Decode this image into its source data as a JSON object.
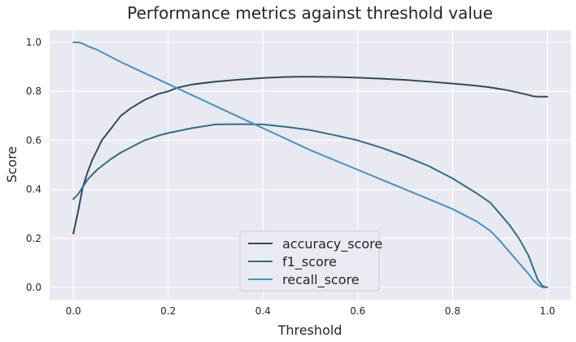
{
  "chart_data": {
    "type": "line",
    "title": "Performance metrics against threshold value",
    "xlabel": "Threshold",
    "ylabel": "Score",
    "xlim": [
      -0.05,
      1.05
    ],
    "ylim": [
      -0.05,
      1.05
    ],
    "x_ticks": [
      0.0,
      0.2,
      0.4,
      0.6,
      0.8,
      1.0
    ],
    "y_ticks": [
      0.0,
      0.2,
      0.4,
      0.6,
      0.8,
      1.0
    ],
    "x_tick_labels": [
      "0.0",
      "0.2",
      "0.4",
      "0.6",
      "0.8",
      "1.0"
    ],
    "y_tick_labels": [
      "0.0",
      "0.2",
      "0.4",
      "0.6",
      "0.8",
      "1.0"
    ],
    "grid": true,
    "legend_position": "bottom-center",
    "background_color": "#e9e9f1",
    "grid_color": "#ffffff",
    "series": [
      {
        "name": "accuracy_score",
        "color": "#2f4b5b",
        "x": [
          0.0,
          0.01,
          0.02,
          0.03,
          0.04,
          0.05,
          0.06,
          0.08,
          0.1,
          0.12,
          0.15,
          0.18,
          0.2,
          0.22,
          0.25,
          0.3,
          0.35,
          0.4,
          0.45,
          0.48,
          0.5,
          0.55,
          0.6,
          0.65,
          0.7,
          0.75,
          0.8,
          0.85,
          0.88,
          0.9,
          0.92,
          0.95,
          0.97,
          0.98,
          1.0
        ],
        "y": [
          0.22,
          0.31,
          0.41,
          0.47,
          0.52,
          0.56,
          0.6,
          0.65,
          0.7,
          0.73,
          0.765,
          0.79,
          0.8,
          0.815,
          0.828,
          0.84,
          0.848,
          0.855,
          0.859,
          0.86,
          0.86,
          0.859,
          0.856,
          0.852,
          0.847,
          0.84,
          0.832,
          0.823,
          0.816,
          0.81,
          0.803,
          0.79,
          0.78,
          0.778,
          0.778
        ]
      },
      {
        "name": "f1_score",
        "color": "#2e6e8e",
        "x": [
          0.0,
          0.01,
          0.02,
          0.03,
          0.04,
          0.05,
          0.06,
          0.08,
          0.1,
          0.12,
          0.15,
          0.18,
          0.2,
          0.25,
          0.3,
          0.35,
          0.4,
          0.45,
          0.5,
          0.55,
          0.6,
          0.65,
          0.7,
          0.75,
          0.8,
          0.85,
          0.88,
          0.9,
          0.92,
          0.94,
          0.96,
          0.97,
          0.98,
          0.99,
          1.0
        ],
        "y": [
          0.36,
          0.38,
          0.41,
          0.44,
          0.46,
          0.48,
          0.495,
          0.525,
          0.55,
          0.57,
          0.6,
          0.62,
          0.63,
          0.65,
          0.665,
          0.666,
          0.665,
          0.655,
          0.642,
          0.622,
          0.6,
          0.57,
          0.535,
          0.495,
          0.445,
          0.385,
          0.345,
          0.3,
          0.255,
          0.2,
          0.13,
          0.08,
          0.03,
          0.005,
          0.0
        ]
      },
      {
        "name": "recall_score",
        "color": "#4393bf",
        "x": [
          0.0,
          0.01,
          0.02,
          0.03,
          0.05,
          0.08,
          0.1,
          0.15,
          0.2,
          0.25,
          0.3,
          0.35,
          0.4,
          0.45,
          0.5,
          0.55,
          0.6,
          0.65,
          0.7,
          0.75,
          0.8,
          0.85,
          0.88,
          0.9,
          0.92,
          0.94,
          0.96,
          0.97,
          0.98,
          0.99,
          1.0
        ],
        "y": [
          1.0,
          1.0,
          0.995,
          0.985,
          0.97,
          0.94,
          0.92,
          0.875,
          0.83,
          0.785,
          0.74,
          0.695,
          0.65,
          0.605,
          0.56,
          0.52,
          0.48,
          0.44,
          0.4,
          0.36,
          0.32,
          0.27,
          0.23,
          0.19,
          0.145,
          0.1,
          0.055,
          0.03,
          0.01,
          0.0,
          0.0
        ]
      }
    ]
  }
}
